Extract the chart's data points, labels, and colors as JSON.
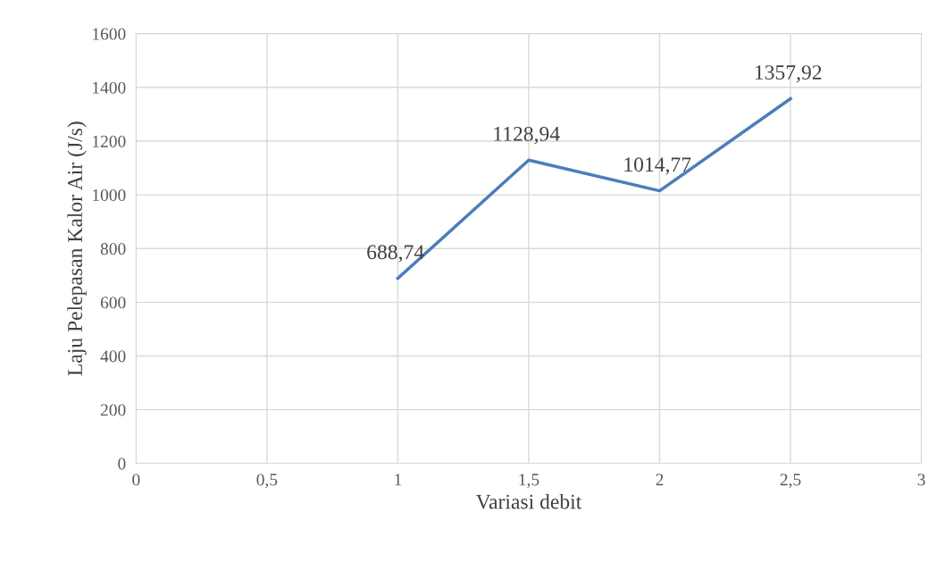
{
  "chart_data": {
    "type": "line",
    "xlabel": "Variasi debit",
    "ylabel": "Laju Pelepasan Kalor Air (J/s)",
    "x": [
      1,
      1.5,
      2,
      2.5
    ],
    "series": [
      {
        "color": "#4a7ebb",
        "values": [
          688.74,
          1128.94,
          1014.77,
          1357.92
        ],
        "value_labels": [
          "688,74",
          "1128,94",
          "1014,77",
          "1357,92"
        ]
      }
    ],
    "xlim": [
      0,
      3
    ],
    "xticks": [
      0,
      {
        "value": 0.5,
        "label": "0,5"
      },
      1,
      {
        "value": 1.5,
        "label": "1,5"
      },
      2,
      {
        "value": 2.5,
        "label": "2,5"
      },
      3
    ],
    "ylim": [
      0,
      1600
    ],
    "yticks": [
      0,
      200,
      400,
      600,
      800,
      1000,
      1200,
      1400,
      1600
    ],
    "grid": true,
    "legend": false,
    "marker": "none",
    "line_style": "solid"
  }
}
